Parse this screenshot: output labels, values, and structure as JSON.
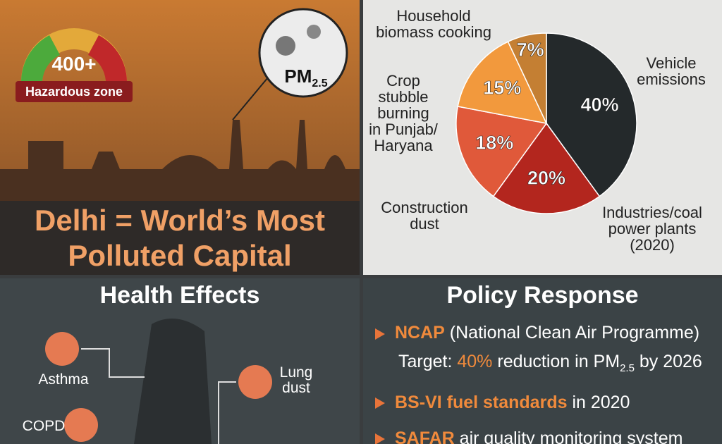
{
  "chart_data": {
    "type": "pie",
    "categories": [
      "Vehicle\nemissions",
      "Industries/coal\npower plants\n(2020)",
      "Construction\ndust",
      "Crop\nstubble\nburning\nin Punjab/\nHaryana",
      "Household\nbiomass cooking"
    ],
    "values": [
      40,
      20,
      18,
      15,
      7
    ],
    "value_labels": [
      "40%",
      "20%",
      "18%",
      "15%",
      "7%"
    ],
    "colors": [
      "#24292b",
      "#b3261e",
      "#e0593a",
      "#f2993d",
      "#c47f33"
    ]
  },
  "hero": {
    "aqi": "400+",
    "zone": "Hazardous zone",
    "pm": "PM",
    "pm_sub": "2.5",
    "title": "Delhi = World’s Most Polluted Capital"
  },
  "health": {
    "title": "Health Effects",
    "labels": [
      "Asthma",
      "COPD",
      "Lung\ndust"
    ]
  },
  "policy": {
    "title": "Policy Response",
    "items": [
      {
        "lead": "NCAP",
        "rest": " (National Clean Air Programme)"
      },
      {
        "lead": "BS-VI fuel standards",
        "rest": " in 2020"
      },
      {
        "lead": "SAFAR",
        "rest": " air quality monitoring system"
      }
    ],
    "target": {
      "pre": "Target: ",
      "hl": "40%",
      "mid": " reduction in PM",
      "sub": "2.5",
      "post": " by 2026"
    }
  }
}
